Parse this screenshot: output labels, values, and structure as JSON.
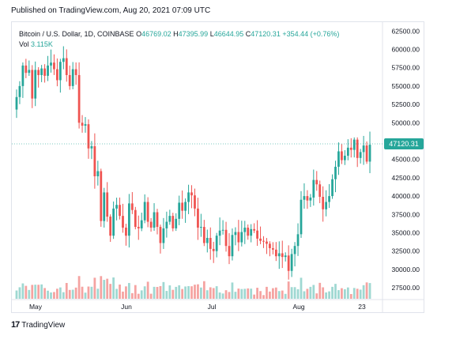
{
  "published": "Published on TradingView.com, Aug 20, 2021 07:09 UTC",
  "legend": {
    "symbol": "Bitcoin / U.S. Dollar, 1D, COINBASE",
    "open_key": "O",
    "open": "46769.02",
    "high_key": "H",
    "high": "47395.99",
    "low_key": "L",
    "low": "46644.95",
    "close_key": "C",
    "close": "47120.31",
    "change": "+354.44 (+0.76%)"
  },
  "volume": {
    "label": "Vol",
    "value": "3.115K"
  },
  "footer": {
    "brand": "TradingView"
  },
  "colors": {
    "up": "#26a69a",
    "down": "#ef5350",
    "up_vol": "#9fd8d2",
    "down_vol": "#f5a3a1",
    "last": "#26a69a"
  },
  "chart_data": {
    "type": "candlestick",
    "title": "Bitcoin / U.S. Dollar, 1D, COINBASE",
    "x_ticks": [
      "May",
      "Jun",
      "Jul",
      "Aug",
      "23"
    ],
    "y_ticks": [
      "62500.00",
      "60000.00",
      "57500.00",
      "55000.00",
      "52500.00",
      "50000.00",
      "45000.00",
      "42500.00",
      "40000.00",
      "37500.00",
      "35000.00",
      "32500.00",
      "30000.00",
      "27500.00"
    ],
    "ylim": [
      26000,
      63500
    ],
    "last_price": "47120.31",
    "close_series": [
      53500,
      55000,
      57800,
      56800,
      57200,
      53300,
      57200,
      56500,
      57400,
      56400,
      57800,
      58200,
      57300,
      55800,
      58300,
      58800,
      56500,
      55000,
      57300,
      56500,
      50000,
      49600,
      49800,
      46500,
      46800,
      42700,
      43400,
      36600,
      40500,
      37200,
      34600,
      38300,
      38800,
      37300,
      35700,
      34600,
      39000,
      38100,
      35800,
      35600,
      36700,
      39200,
      36500,
      35700,
      37800,
      35800,
      33600,
      35600,
      36500,
      37300,
      35600,
      36900,
      39100,
      38000,
      39200,
      40500,
      40100,
      38300,
      35700,
      35800,
      33600,
      34300,
      32800,
      32500,
      34600,
      35300,
      35400,
      33200,
      31800,
      34700,
      35100,
      33700,
      35100,
      35700,
      34600,
      35500,
      35300,
      34200,
      33900,
      33800,
      33500,
      32900,
      32700,
      31800,
      32200,
      31700,
      31900,
      29800,
      32100,
      33200,
      34800,
      39500,
      40000,
      39400,
      39800,
      42200,
      41600,
      39900,
      38200,
      39200,
      40000,
      42300,
      44000,
      46100,
      44900,
      45500,
      46600,
      46300,
      47700,
      45200,
      46000,
      46900,
      44700,
      47000
    ]
  }
}
